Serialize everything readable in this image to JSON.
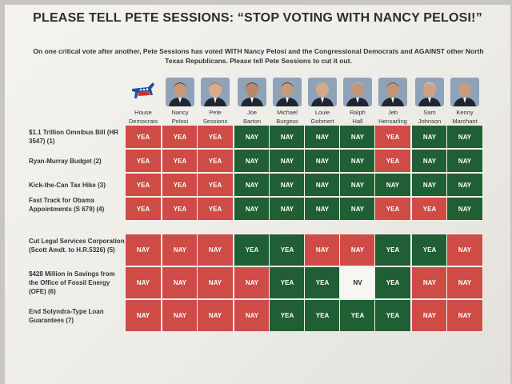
{
  "header": {
    "title": "PLEASE TELL PETE SESSIONS: “STOP VOTING WITH NANCY PELOSI!”",
    "subtitle_line1": "On one critical vote after another, Pete Sessions has voted WITH Nancy Pelosi and the Congressional Democrats and AGAINST other North",
    "subtitle_line2": "Texas Republicans.  Please tell Pete Sessions to cut it out."
  },
  "columns": [
    {
      "line1": "House",
      "line2": "Democrats",
      "icon": "donkey-logo-icon"
    },
    {
      "line1": "Nancy",
      "line2": "Pelosi",
      "icon": "portrait-icon"
    },
    {
      "line1": "Pete",
      "line2": "Sessions",
      "icon": "portrait-icon"
    },
    {
      "line1": "Joe",
      "line2": "Barton",
      "icon": "portrait-icon"
    },
    {
      "line1": "Michael",
      "line2": "Burgess",
      "icon": "portrait-icon"
    },
    {
      "line1": "Louie",
      "line2": "Gohmert",
      "icon": "portrait-icon"
    },
    {
      "line1": "Ralph",
      "line2": "Hall",
      "icon": "portrait-icon"
    },
    {
      "line1": "Jeb",
      "line2": "Hensarling",
      "icon": "portrait-icon"
    },
    {
      "line1": "Sam",
      "line2": "Johnson",
      "icon": "portrait-icon"
    },
    {
      "line1": "Kenny",
      "line2": "Marchant",
      "icon": "portrait-icon"
    }
  ],
  "group1": [
    {
      "label": "$1.1 Trillion Omnibus Bill (HR 3547) (1)",
      "votes": [
        "YEA",
        "YEA",
        "YEA",
        "NAY",
        "NAY",
        "NAY",
        "NAY",
        "YEA",
        "NAY",
        "NAY"
      ]
    },
    {
      "label": "Ryan-Murray Budget (2)",
      "votes": [
        "YEA",
        "YEA",
        "YEA",
        "NAY",
        "NAY",
        "NAY",
        "NAY",
        "YEA",
        "NAY",
        "NAY"
      ]
    },
    {
      "label": "Kick-the-Can Tax Hike (3)",
      "votes": [
        "YEA",
        "YEA",
        "YEA",
        "NAY",
        "NAY",
        "NAY",
        "NAY",
        "NAY",
        "NAY",
        "NAY"
      ]
    },
    {
      "label": "Fast Track for Obama Appointments (S 679) (4)",
      "votes": [
        "YEA",
        "YEA",
        "YEA",
        "NAY",
        "NAY",
        "NAY",
        "NAY",
        "YEA",
        "YEA",
        "NAY"
      ]
    }
  ],
  "group2": [
    {
      "label": "Cut Legal Services Corporation (Scott Amdt. to H.R.5326) (5)",
      "votes": [
        "NAY",
        "NAY",
        "NAY",
        "YEA",
        "YEA",
        "NAY",
        "NAY",
        "YEA",
        "YEA",
        "NAY"
      ]
    },
    {
      "label": "$428 Million in Savings from the Office of Fossil Energy (OFE) (6)",
      "votes": [
        "NAY",
        "NAY",
        "NAY",
        "NAY",
        "YEA",
        "YEA",
        "NV",
        "YEA",
        "NAY",
        "NAY"
      ]
    },
    {
      "label": "End Solyndra-Type Loan Guarantees (7)",
      "votes": [
        "NAY",
        "NAY",
        "NAY",
        "NAY",
        "YEA",
        "YEA",
        "YEA",
        "YEA",
        "NAY",
        "NAY"
      ]
    }
  ],
  "colors": {
    "red": "#cf4b45",
    "green": "#1f5f33",
    "blank": "#f7f6f2"
  }
}
